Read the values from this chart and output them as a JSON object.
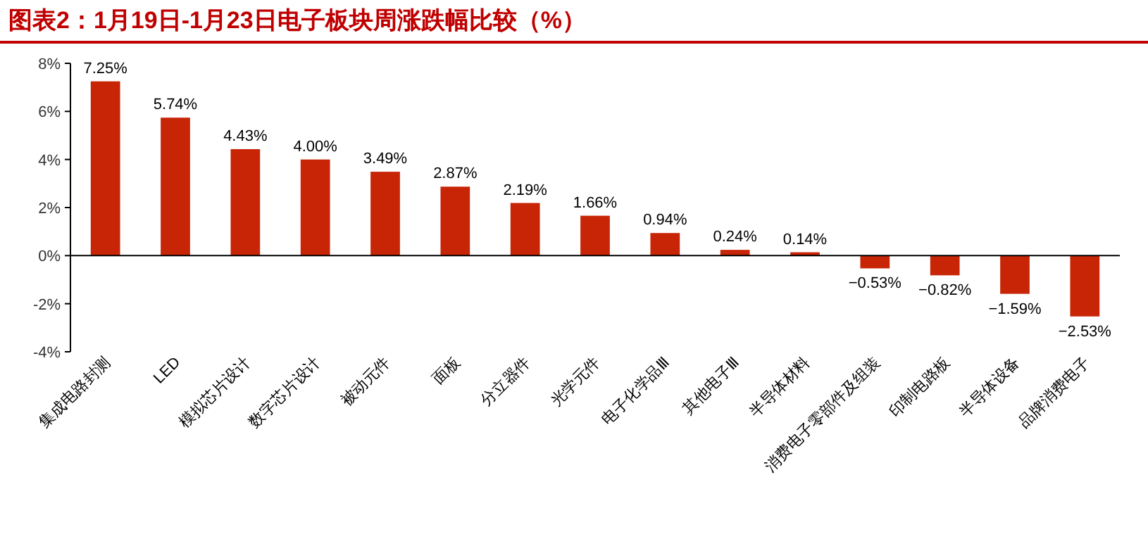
{
  "chart_data": {
    "type": "bar",
    "title": "图表2：1月19日-1月23日电子板块周涨跌幅比较（%）",
    "categories": [
      "集成电路封测",
      "LED",
      "模拟芯片设计",
      "数字芯片设计",
      "被动元件",
      "面板",
      "分立器件",
      "光学元件",
      "电子化学品Ⅲ",
      "其他电子Ⅲ",
      "半导体材料",
      "消费电子零部件及组装",
      "印制电路板",
      "半导体设备",
      "品牌消费电子"
    ],
    "values": [
      7.25,
      5.74,
      4.43,
      4.0,
      3.49,
      2.87,
      2.19,
      1.66,
      0.94,
      0.24,
      0.14,
      -0.53,
      -0.82,
      -1.59,
      -2.53
    ],
    "value_labels": [
      "7.25%",
      "5.74%",
      "4.43%",
      "4.00%",
      "3.49%",
      "2.87%",
      "2.19%",
      "1.66%",
      "0.94%",
      "0.24%",
      "0.14%",
      "−0.53%",
      "−0.82%",
      "−1.59%",
      "−2.53%"
    ],
    "color": "#c82506",
    "ylim": [
      -4,
      8
    ],
    "yticks": [
      {
        "value": -4,
        "label": "-4%"
      },
      {
        "value": -2,
        "label": "-2%"
      },
      {
        "value": 0,
        "label": "0%"
      },
      {
        "value": 2,
        "label": "2%"
      },
      {
        "value": 4,
        "label": "4%"
      },
      {
        "value": 6,
        "label": "6%"
      },
      {
        "value": 8,
        "label": "8%"
      }
    ]
  }
}
